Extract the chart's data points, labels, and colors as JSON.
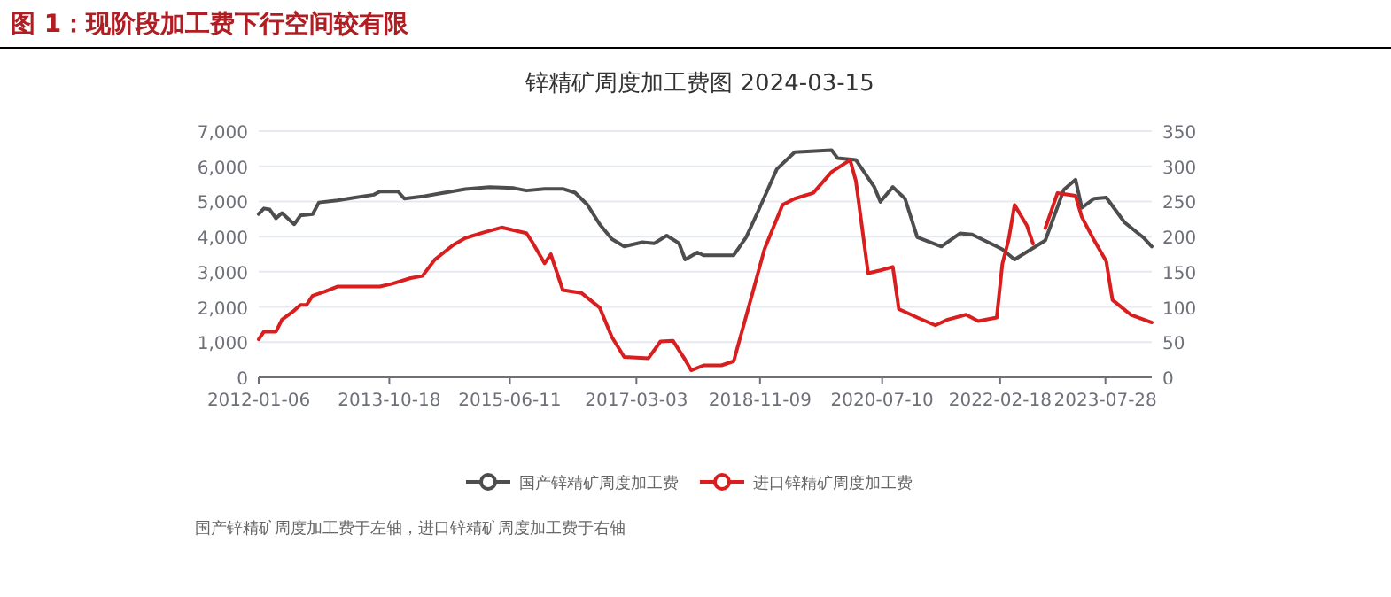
{
  "chart_data": {
    "type": "line",
    "title": "图 1：现阶段加工费下行空间较有限",
    "subtitle": "锌精矿周度加工费图 2024-03-15",
    "annotations": [
      "国产锌精矿周度加工费于左轴，进口锌精矿周度加工费于右轴"
    ],
    "xlim": [
      "2012-01-06",
      "2024-03-15"
    ],
    "xticks": [
      {
        "value": "2012-01-06",
        "label": "2012-01-06"
      },
      {
        "value": "2013-10-18",
        "label": "2013-10-18"
      },
      {
        "value": "2015-06-11",
        "label": "2015-06-11"
      },
      {
        "value": "2017-03-03",
        "label": "2017-03-03"
      },
      {
        "value": "2018-11-09",
        "label": "2018-11-09"
      },
      {
        "value": "2020-07-10",
        "label": "2020-07-10"
      },
      {
        "value": "2022-02-18",
        "label": "2022-02-18"
      },
      {
        "value": "2023-07-28",
        "label": "2023-07-28"
      }
    ],
    "ylim": [
      0,
      7000
    ],
    "yticks": [
      {
        "value": 0,
        "label": "0"
      },
      {
        "value": 1000,
        "label": "1,000"
      },
      {
        "value": 2000,
        "label": "2,000"
      },
      {
        "value": 3000,
        "label": "3,000"
      },
      {
        "value": 4000,
        "label": "4,000"
      },
      {
        "value": 5000,
        "label": "5,000"
      },
      {
        "value": 6000,
        "label": "6,000"
      },
      {
        "value": 7000,
        "label": "7,000"
      }
    ],
    "y2lim": [
      0,
      350
    ],
    "y2ticks": [
      0,
      50,
      100,
      150,
      200,
      250,
      300,
      350
    ],
    "grid": "y",
    "legend": "bottom",
    "series": [
      {
        "name": "国产锌精矿周度加工费",
        "color": "#4d4d4d",
        "x": [
          "2012-01-06",
          "2012-02",
          "2012-03",
          "2012-04",
          "2012-05",
          "2012-07",
          "2012-08",
          "2012-10",
          "2012-11",
          "2013-02",
          "2013-05",
          "2013-08",
          "2013-09",
          "2013-12",
          "2014-01",
          "2014-04",
          "2014-07",
          "2014-11",
          "2015-03",
          "2015-07",
          "2015-09",
          "2015-12",
          "2016-03",
          "2016-05",
          "2016-07",
          "2016-09",
          "2016-11",
          "2017-01",
          "2017-04",
          "2017-06",
          "2017-08",
          "2017-10",
          "2017-11",
          "2018-01",
          "2018-02",
          "2018-07",
          "2018-09",
          "2018-11",
          "2019-02",
          "2019-05",
          "2019-11",
          "2019-12",
          "2020-03",
          "2020-06",
          "2020-07",
          "2020-09",
          "2020-11",
          "2021-01",
          "2021-05",
          "2021-08",
          "2021-10",
          "2022-02",
          "2022-03",
          "2022-05",
          "2022-10",
          "2023-01",
          "2023-03",
          "2023-04",
          "2023-06",
          "2023-08",
          "2023-11",
          "2024-02",
          "2024-03-15"
        ],
        "values": [
          4640,
          4800,
          4770,
          4520,
          4670,
          4350,
          4600,
          4640,
          4970,
          5030,
          5110,
          5190,
          5280,
          5280,
          5080,
          5140,
          5230,
          5350,
          5410,
          5380,
          5310,
          5360,
          5360,
          5250,
          4910,
          4350,
          3930,
          3720,
          3840,
          3810,
          4030,
          3810,
          3350,
          3550,
          3470,
          3470,
          3980,
          4740,
          5920,
          6400,
          6460,
          6230,
          6180,
          5410,
          4990,
          5410,
          5080,
          3980,
          3720,
          4090,
          4060,
          3720,
          3640,
          3350,
          3890,
          5330,
          5620,
          4820,
          5080,
          5110,
          4400,
          3980,
          3720
        ]
      },
      {
        "name": "进口锌精矿周度加工费",
        "color": "#d81e1e",
        "axis": "y2",
        "x": [
          "2012-01-06",
          "2012-02",
          "2012-04",
          "2012-05",
          "2012-07",
          "2012-08",
          "2012-09",
          "2012-10",
          "2012-12",
          "2013-02",
          "2013-09",
          "2013-11",
          "2014-02",
          "2014-04",
          "2014-06",
          "2014-09",
          "2014-11",
          "2015-02",
          "2015-05",
          "2015-07",
          "2015-09",
          "2015-10",
          "2015-12",
          "2016-01",
          "2016-03",
          "2016-06",
          "2016-09",
          "2016-11",
          "2017-01",
          "2017-05",
          "2017-07",
          "2017-09",
          "2017-11",
          "2017-12",
          "2018-02",
          "2018-05",
          "2018-07",
          "2018-08",
          "2018-10",
          "2018-12",
          "2019-03",
          "2019-05",
          "2019-08",
          "2019-11",
          "2020-02",
          "2020-03",
          "2020-05",
          "2020-07",
          "2020-09",
          "2020-10",
          "2021-01",
          "2021-04",
          "2021-06",
          "2021-09",
          "2021-11",
          "2022-02",
          "2022-03",
          "2022-04",
          "2022-05",
          "2022-07",
          "2022-08",
          "2022-09",
          "2022-10",
          "2022-12",
          "2023-03",
          "2023-04",
          "2023-06",
          "2023-08",
          "2023-09",
          "2023-12",
          "2024-03-15"
        ],
        "values": [
          54,
          65,
          65,
          82,
          95,
          103,
          103,
          116,
          122,
          129,
          129,
          133,
          141,
          144,
          167,
          188,
          198,
          206,
          213,
          209,
          205,
          192,
          162,
          175,
          124,
          120,
          99,
          57,
          29,
          27,
          51,
          52,
          25,
          10,
          17,
          17,
          23,
          55,
          118,
          182,
          245,
          254,
          262,
          292,
          309,
          279,
          148,
          152,
          157,
          97,
          85,
          74,
          82,
          89,
          80,
          85,
          161,
          195,
          245,
          216,
          190,
          null,
          212,
          262,
          258,
          228,
          195,
          165,
          110,
          89,
          78
        ]
      }
    ]
  }
}
